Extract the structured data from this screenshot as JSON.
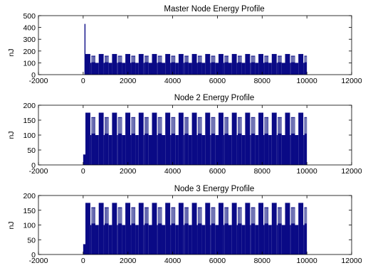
{
  "colors": {
    "bar": "#0a0a86",
    "axis": "#000000",
    "background": "#ffffff"
  },
  "chart_data": [
    {
      "type": "bar",
      "title": "Master Node Energy Profile",
      "xlabel": "",
      "ylabel": "nJ",
      "xlim": [
        -2000,
        12000
      ],
      "ylim": [
        0,
        500
      ],
      "xticks": [
        "-2000",
        "0",
        "2000",
        "4000",
        "6000",
        "8000",
        "10000",
        "12000"
      ],
      "yticks": [
        "0",
        "100",
        "200",
        "300",
        "400",
        "500"
      ],
      "grid": false,
      "series": [
        {
          "burst_period": 595,
          "burst_count": 17,
          "x_start": 100,
          "x_end": 10000,
          "spike": {
            "x": 80,
            "y": 430
          },
          "cycle_pattern": [
            {
              "offset": 0,
              "width": 220,
              "y": 175
            },
            {
              "offset": 220,
              "width": 45,
              "y": 100
            },
            {
              "offset": 265,
              "width": 180,
              "y": 160
            },
            {
              "offset": 445,
              "width": 150,
              "y": 100
            }
          ]
        }
      ]
    },
    {
      "type": "bar",
      "title": "Node 2 Energy Profile",
      "xlabel": "",
      "ylabel": "nJ",
      "xlim": [
        -2000,
        12000
      ],
      "ylim": [
        0,
        200
      ],
      "xticks": [
        "-2000",
        "0",
        "2000",
        "4000",
        "6000",
        "8000",
        "10000",
        "12000"
      ],
      "yticks": [
        "0",
        "50",
        "100",
        "150",
        "200"
      ],
      "grid": false,
      "series": [
        {
          "burst_period": 595,
          "burst_count": 17,
          "x_start": 100,
          "x_end": 10000,
          "initial": {
            "x": 0,
            "width": 100,
            "y": 35
          },
          "cycle_pattern": [
            {
              "offset": 0,
              "width": 220,
              "y": 175
            },
            {
              "offset": 220,
              "width": 45,
              "y": 100
            },
            {
              "offset": 265,
              "width": 180,
              "y": 160
            },
            {
              "offset": 445,
              "width": 150,
              "y": 100
            }
          ]
        }
      ]
    },
    {
      "type": "bar",
      "title": "Node 3 Energy Profile",
      "xlabel": "",
      "ylabel": "nJ",
      "xlim": [
        -2000,
        12000
      ],
      "ylim": [
        0,
        200
      ],
      "xticks": [
        "-2000",
        "0",
        "2000",
        "4000",
        "6000",
        "8000",
        "10000",
        "12000"
      ],
      "yticks": [
        "0",
        "50",
        "100",
        "150",
        "200"
      ],
      "grid": false,
      "series": [
        {
          "burst_period": 595,
          "burst_count": 17,
          "x_start": 100,
          "x_end": 10000,
          "initial": {
            "x": 0,
            "width": 100,
            "y": 35
          },
          "cycle_pattern": [
            {
              "offset": 0,
              "width": 220,
              "y": 175
            },
            {
              "offset": 220,
              "width": 45,
              "y": 100
            },
            {
              "offset": 265,
              "width": 180,
              "y": 160
            },
            {
              "offset": 445,
              "width": 150,
              "y": 100
            }
          ]
        }
      ]
    }
  ]
}
